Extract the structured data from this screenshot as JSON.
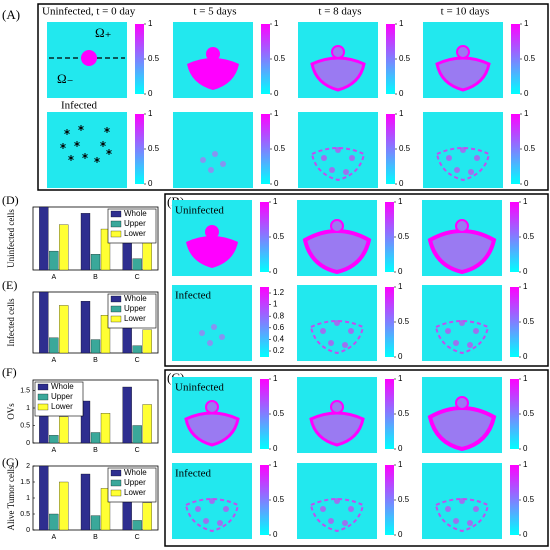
{
  "panels": {
    "A": "(A)",
    "B": "(B)",
    "C": "(C)",
    "D": "(D)",
    "E": "(E)",
    "F": "(F)",
    "G": "(G)"
  },
  "panel_a": {
    "titles": [
      "Uninfected, t = 0 day",
      "t = 5 days",
      "t = 8 days",
      "t = 10 days"
    ],
    "row_label": "Infected",
    "omega_upper": "Ω₊",
    "omega_lower": "Ω₋"
  },
  "panel_b": {
    "row_labels": [
      "Uninfected",
      "Infected"
    ]
  },
  "panel_c": {
    "row_labels": [
      "Uninfected",
      "Infected"
    ]
  },
  "colorbar_ticks": [
    0,
    0.5,
    1
  ],
  "colorbar_ticks_infected": [
    0.2,
    0.4,
    0.6,
    0.8,
    1,
    1.2
  ],
  "chart_data": [
    {
      "type": "bar",
      "ylabel": "Uninfected cells",
      "categories": [
        "A",
        "B",
        "C"
      ],
      "ylim": [
        0,
        1
      ],
      "legend": "upper right",
      "series": [
        {
          "name": "Whole",
          "color": "#2e2e8f",
          "values": [
            1,
            0.9,
            0.82
          ]
        },
        {
          "name": "Upper",
          "color": "#3aa89a",
          "values": [
            0.3,
            0.25,
            0.18
          ]
        },
        {
          "name": "Lower",
          "color": "#ffff33",
          "values": [
            0.72,
            0.65,
            0.72
          ]
        }
      ]
    },
    {
      "type": "bar",
      "ylabel": "Infected cells",
      "categories": [
        "A",
        "B",
        "C"
      ],
      "ylim": [
        0,
        1
      ],
      "legend": "upper right",
      "series": [
        {
          "name": "Whole",
          "color": "#2e2e8f",
          "values": [
            1,
            0.85,
            0.7
          ]
        },
        {
          "name": "Upper",
          "color": "#3aa89a",
          "values": [
            0.25,
            0.22,
            0.12
          ]
        },
        {
          "name": "Lower",
          "color": "#ffff33",
          "values": [
            0.78,
            0.62,
            0.38
          ]
        }
      ]
    },
    {
      "type": "bar",
      "ylabel": "OVs",
      "categories": [
        "A",
        "B",
        "C"
      ],
      "ylim": [
        0,
        1.8
      ],
      "yticks": [
        0,
        0.5,
        1,
        1.5
      ],
      "legend": "upper left",
      "series": [
        {
          "name": "Whole",
          "color": "#2e2e8f",
          "values": [
            1.25,
            1.2,
            1.6
          ]
        },
        {
          "name": "Upper",
          "color": "#3aa89a",
          "values": [
            0.22,
            0.3,
            0.5
          ]
        },
        {
          "name": "Lower",
          "color": "#ffff33",
          "values": [
            0.75,
            0.85,
            1.1
          ]
        }
      ]
    },
    {
      "type": "bar",
      "ylabel": "Alive Tumor cells",
      "categories": [
        "A",
        "B",
        "C"
      ],
      "ylim": [
        0,
        2
      ],
      "yticks": [
        0,
        0.5,
        1,
        1.5,
        2
      ],
      "legend": "upper right",
      "series": [
        {
          "name": "Whole",
          "color": "#2e2e8f",
          "values": [
            2,
            1.75,
            1.15
          ]
        },
        {
          "name": "Upper",
          "color": "#3aa89a",
          "values": [
            0.5,
            0.45,
            0.3
          ]
        },
        {
          "name": "Lower",
          "color": "#ffff33",
          "values": [
            1.5,
            1.3,
            0.85
          ]
        }
      ]
    }
  ]
}
